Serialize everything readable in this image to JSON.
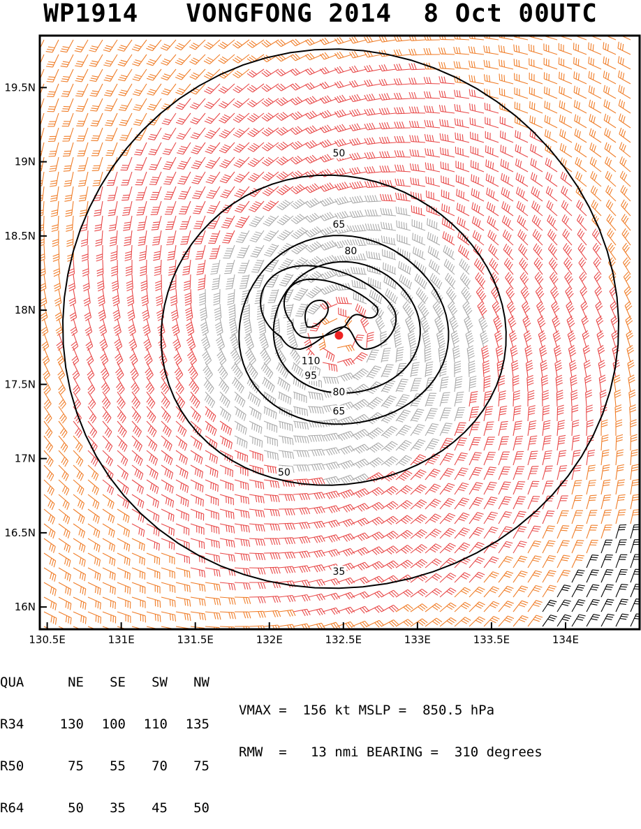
{
  "title": "WP1914   VONGFONG 2014  8 Oct 00UTC",
  "chart_data": {
    "type": "contour",
    "storm_center": {
      "lon": 132.47,
      "lat": 17.83
    },
    "xlim": [
      130.45,
      134.5
    ],
    "ylim": [
      15.85,
      19.85
    ],
    "x_ticks": [
      {
        "value": 130.5,
        "label": "130.5E"
      },
      {
        "value": 131,
        "label": "131E"
      },
      {
        "value": 131.5,
        "label": "131.5E"
      },
      {
        "value": 132,
        "label": "132E"
      },
      {
        "value": 132.5,
        "label": "132.5E"
      },
      {
        "value": 133,
        "label": "133E"
      },
      {
        "value": 133.5,
        "label": "133.5E"
      },
      {
        "value": 134,
        "label": "134E"
      }
    ],
    "y_ticks": [
      {
        "value": 16,
        "label": "16N"
      },
      {
        "value": 16.5,
        "label": "16.5N"
      },
      {
        "value": 17,
        "label": "17N"
      },
      {
        "value": 17.5,
        "label": "17.5N"
      },
      {
        "value": 18,
        "label": "18N"
      },
      {
        "value": 18.5,
        "label": "18.5N"
      },
      {
        "value": 19,
        "label": "19N"
      },
      {
        "value": 19.5,
        "label": "19.5N"
      }
    ],
    "contour_labels": [
      {
        "label": "35",
        "lon": 132.47,
        "lat": 16.24
      },
      {
        "label": "50",
        "lon": 132.47,
        "lat": 19.06
      },
      {
        "label": "50",
        "lon": 132.1,
        "lat": 16.91
      },
      {
        "label": "65",
        "lon": 132.47,
        "lat": 18.58
      },
      {
        "label": "65",
        "lon": 132.47,
        "lat": 17.32
      },
      {
        "label": "80",
        "lon": 132.55,
        "lat": 18.4
      },
      {
        "label": "80",
        "lon": 132.47,
        "lat": 17.45
      },
      {
        "label": "95",
        "lon": 132.28,
        "lat": 17.56
      },
      {
        "label": "110",
        "lon": 132.28,
        "lat": 17.66
      }
    ],
    "wind_colors": {
      "lt_35": "#22c822",
      "35_to_50": "#e8a832",
      "50_to_65": "#f07d28",
      "65_to_95": "#e84848",
      "ge_95": "#aaaaaa",
      "calm_corner": "#000000"
    }
  },
  "table": {
    "header": [
      "QUA",
      "NE",
      "SE",
      "SW",
      "NW"
    ],
    "rows": [
      [
        "R34",
        "130",
        "100",
        "110",
        "135"
      ],
      [
        "R50",
        "75",
        "55",
        "70",
        "75"
      ],
      [
        "R64",
        "50",
        "35",
        "45",
        "50"
      ]
    ]
  },
  "stats": {
    "line1": "VMAX =  156 kt MSLP =  850.5 hPa",
    "line2": "RMW  =   13 nmi BEARING =  310 degrees"
  }
}
